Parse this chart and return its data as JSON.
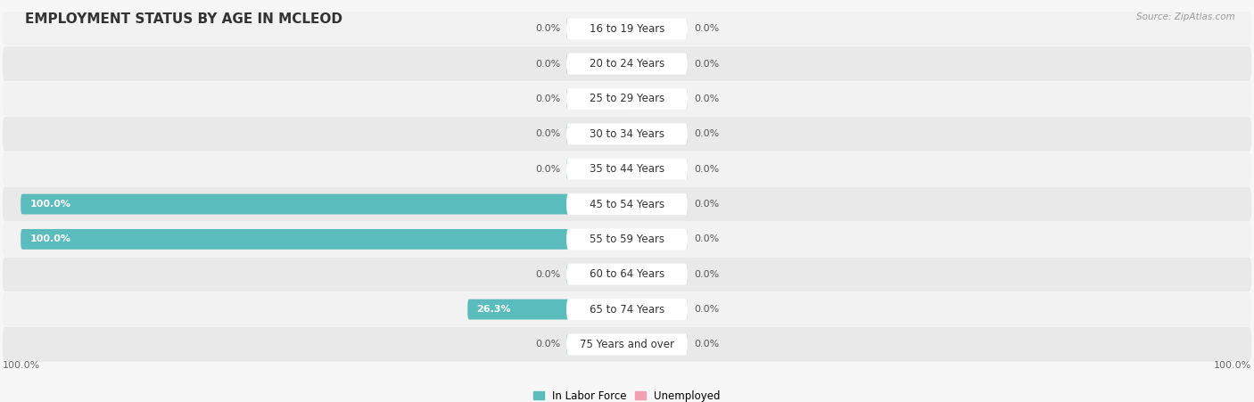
{
  "title": "EMPLOYMENT STATUS BY AGE IN MCLEOD",
  "source": "Source: ZipAtlas.com",
  "categories": [
    "16 to 19 Years",
    "20 to 24 Years",
    "25 to 29 Years",
    "30 to 34 Years",
    "35 to 44 Years",
    "45 to 54 Years",
    "55 to 59 Years",
    "60 to 64 Years",
    "65 to 74 Years",
    "75 Years and over"
  ],
  "labor_force": [
    0.0,
    0.0,
    0.0,
    0.0,
    0.0,
    100.0,
    100.0,
    0.0,
    26.3,
    0.0
  ],
  "unemployed": [
    0.0,
    0.0,
    0.0,
    0.0,
    0.0,
    0.0,
    0.0,
    0.0,
    0.0,
    0.0
  ],
  "labor_force_color": "#5bbcbd",
  "unemployed_color": "#f0a0b0",
  "row_bg_colors": [
    "#f2f2f2",
    "#e9e9e9"
  ],
  "label_color_dark": "#555555",
  "label_color_white": "#ffffff",
  "category_label_color": "#333333",
  "pill_color": "#ffffff",
  "axis_label_left": "100.0%",
  "axis_label_right": "100.0%",
  "legend_labor": "In Labor Force",
  "legend_unemployed": "Unemployed",
  "xlim": 100,
  "title_fontsize": 11,
  "label_fontsize": 8,
  "category_fontsize": 8.5,
  "source_fontsize": 7.5,
  "axis_fontsize": 8
}
